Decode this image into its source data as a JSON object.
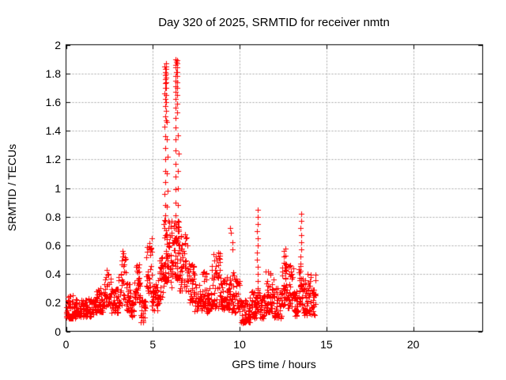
{
  "chart_data": {
    "type": "scatter",
    "title": "Day 320 of 2025, SRMTID for receiver nmtn",
    "xlabel": "GPS time / hours",
    "ylabel": "SRMTID / TECUs",
    "xlim": [
      0,
      24
    ],
    "ylim": [
      0,
      2
    ],
    "xticks": [
      0,
      5,
      10,
      15,
      20
    ],
    "xtick_labels": [
      "0",
      "5",
      "10",
      "15",
      "20"
    ],
    "yticks": [
      0,
      0.2,
      0.4,
      0.6,
      0.8,
      1,
      1.2,
      1.4,
      1.6,
      1.8,
      2
    ],
    "ytick_labels": [
      "0",
      "0.2",
      "0.4",
      "0.6",
      "0.8",
      "1",
      "1.2",
      "1.4",
      "1.6",
      "1.8",
      "2"
    ],
    "grid": true,
    "legend": "none",
    "marker": {
      "shape": "plus",
      "size": 7,
      "color": "#ff0000"
    },
    "grid_color": "#a8a8a8",
    "axis_color": "#000000",
    "background_color": "#ffffff",
    "data_x_extent_hours": [
      0,
      14.4
    ],
    "notes": "Dense noisy scatter band 0-14.4h mostly 0.1-0.4 TECUs; large twin spikes near 5.7h (~1.87) and 6.4h (~1.90); lesser spikes ~0.72 at 9.5h, 0.85 at 11.0h, 0.58 at 12.6h, 0.82 at 13.5h; no data after ~14.4h.",
    "bands_format": [
      "x_start_hour",
      "x_end_hour",
      "y_min_TECUs",
      "y_max_TECUs",
      "point_count"
    ],
    "bands": [
      [
        0.0,
        0.55,
        0.09,
        0.25,
        48
      ],
      [
        0.55,
        1.65,
        0.1,
        0.23,
        100
      ],
      [
        1.65,
        2.2,
        0.13,
        0.3,
        52
      ],
      [
        2.2,
        2.6,
        0.17,
        0.43,
        40
      ],
      [
        2.6,
        3.0,
        0.13,
        0.3,
        38
      ],
      [
        3.0,
        3.2,
        0.18,
        0.42,
        20
      ],
      [
        3.2,
        3.45,
        0.22,
        0.58,
        26
      ],
      [
        3.45,
        3.7,
        0.14,
        0.35,
        24
      ],
      [
        3.7,
        3.95,
        0.1,
        0.26,
        24
      ],
      [
        3.95,
        4.3,
        0.2,
        0.48,
        40
      ],
      [
        4.3,
        4.6,
        0.06,
        0.22,
        24
      ],
      [
        4.6,
        4.95,
        0.26,
        0.65,
        36
      ],
      [
        4.95,
        5.35,
        0.14,
        0.36,
        36
      ],
      [
        5.35,
        5.65,
        0.22,
        0.52,
        30
      ],
      [
        5.65,
        5.95,
        0.34,
        0.78,
        42
      ],
      [
        5.95,
        6.25,
        0.3,
        0.78,
        36
      ],
      [
        6.25,
        6.55,
        0.36,
        0.8,
        38
      ],
      [
        6.55,
        7.0,
        0.28,
        0.68,
        46
      ],
      [
        7.0,
        7.4,
        0.2,
        0.48,
        40
      ],
      [
        7.4,
        7.85,
        0.14,
        0.34,
        40
      ],
      [
        7.85,
        8.1,
        0.16,
        0.42,
        24
      ],
      [
        8.1,
        8.4,
        0.13,
        0.32,
        28
      ],
      [
        8.4,
        8.9,
        0.16,
        0.55,
        46
      ],
      [
        8.9,
        9.45,
        0.15,
        0.38,
        50
      ],
      [
        9.45,
        10.05,
        0.13,
        0.42,
        54
      ],
      [
        10.05,
        10.6,
        0.06,
        0.22,
        50
      ],
      [
        10.6,
        10.95,
        0.09,
        0.28,
        32
      ],
      [
        10.95,
        11.15,
        0.13,
        0.3,
        18
      ],
      [
        11.15,
        11.45,
        0.09,
        0.26,
        28
      ],
      [
        11.45,
        11.95,
        0.13,
        0.44,
        46
      ],
      [
        11.95,
        12.45,
        0.09,
        0.3,
        44
      ],
      [
        12.45,
        12.7,
        0.18,
        0.5,
        26
      ],
      [
        12.7,
        13.1,
        0.16,
        0.48,
        38
      ],
      [
        13.1,
        13.4,
        0.1,
        0.28,
        26
      ],
      [
        13.4,
        13.6,
        0.18,
        0.46,
        22
      ],
      [
        13.6,
        14.4,
        0.11,
        0.4,
        68
      ]
    ],
    "spike_columns": [
      {
        "x": 5.7,
        "ys": [
          1.85,
          1.83,
          1.81,
          1.79,
          1.76,
          1.73,
          1.7,
          1.66,
          1.62,
          1.57,
          1.5,
          1.43,
          1.36,
          1.28,
          1.2,
          1.12,
          1.04,
          0.96,
          0.88,
          0.81
        ]
      },
      {
        "x": 5.76,
        "ys": [
          1.87,
          1.85,
          1.83,
          1.8,
          1.77,
          1.74,
          1.7,
          1.65,
          1.6,
          1.54,
          1.47
        ]
      },
      {
        "x": 5.83,
        "ys": [
          1.46,
          1.34,
          1.22,
          1.1,
          0.98,
          0.87
        ]
      },
      {
        "x": 6.32,
        "ys": [
          1.9,
          1.88,
          1.86,
          1.84,
          1.81,
          1.78,
          1.75,
          1.71,
          1.67,
          1.62,
          1.56,
          1.49,
          1.42,
          1.34,
          1.26,
          1.17,
          1.08,
          0.99,
          0.9,
          0.81,
          0.72
        ]
      },
      {
        "x": 6.39,
        "ys": [
          1.89,
          1.87,
          1.84,
          1.81,
          1.78,
          1.74,
          1.7,
          1.65,
          1.59,
          1.53
        ]
      },
      {
        "x": 6.46,
        "ys": [
          1.37,
          1.24,
          1.12,
          1.0,
          0.88,
          0.77
        ]
      },
      {
        "x": 9.47,
        "ys": [
          0.72,
          0.69
        ]
      },
      {
        "x": 9.58,
        "ys": [
          0.62,
          0.57
        ]
      },
      {
        "x": 11.02,
        "ys": [
          0.85,
          0.8,
          0.75,
          0.7,
          0.65,
          0.6,
          0.55,
          0.5,
          0.45,
          0.4,
          0.35
        ]
      },
      {
        "x": 12.55,
        "ys": [
          0.56,
          0.52,
          0.48
        ]
      },
      {
        "x": 12.63,
        "ys": [
          0.58,
          0.53,
          0.47,
          0.43
        ]
      },
      {
        "x": 13.53,
        "ys": [
          0.82,
          0.77,
          0.72,
          0.67,
          0.62,
          0.57,
          0.52,
          0.47,
          0.42,
          0.37
        ]
      }
    ]
  }
}
